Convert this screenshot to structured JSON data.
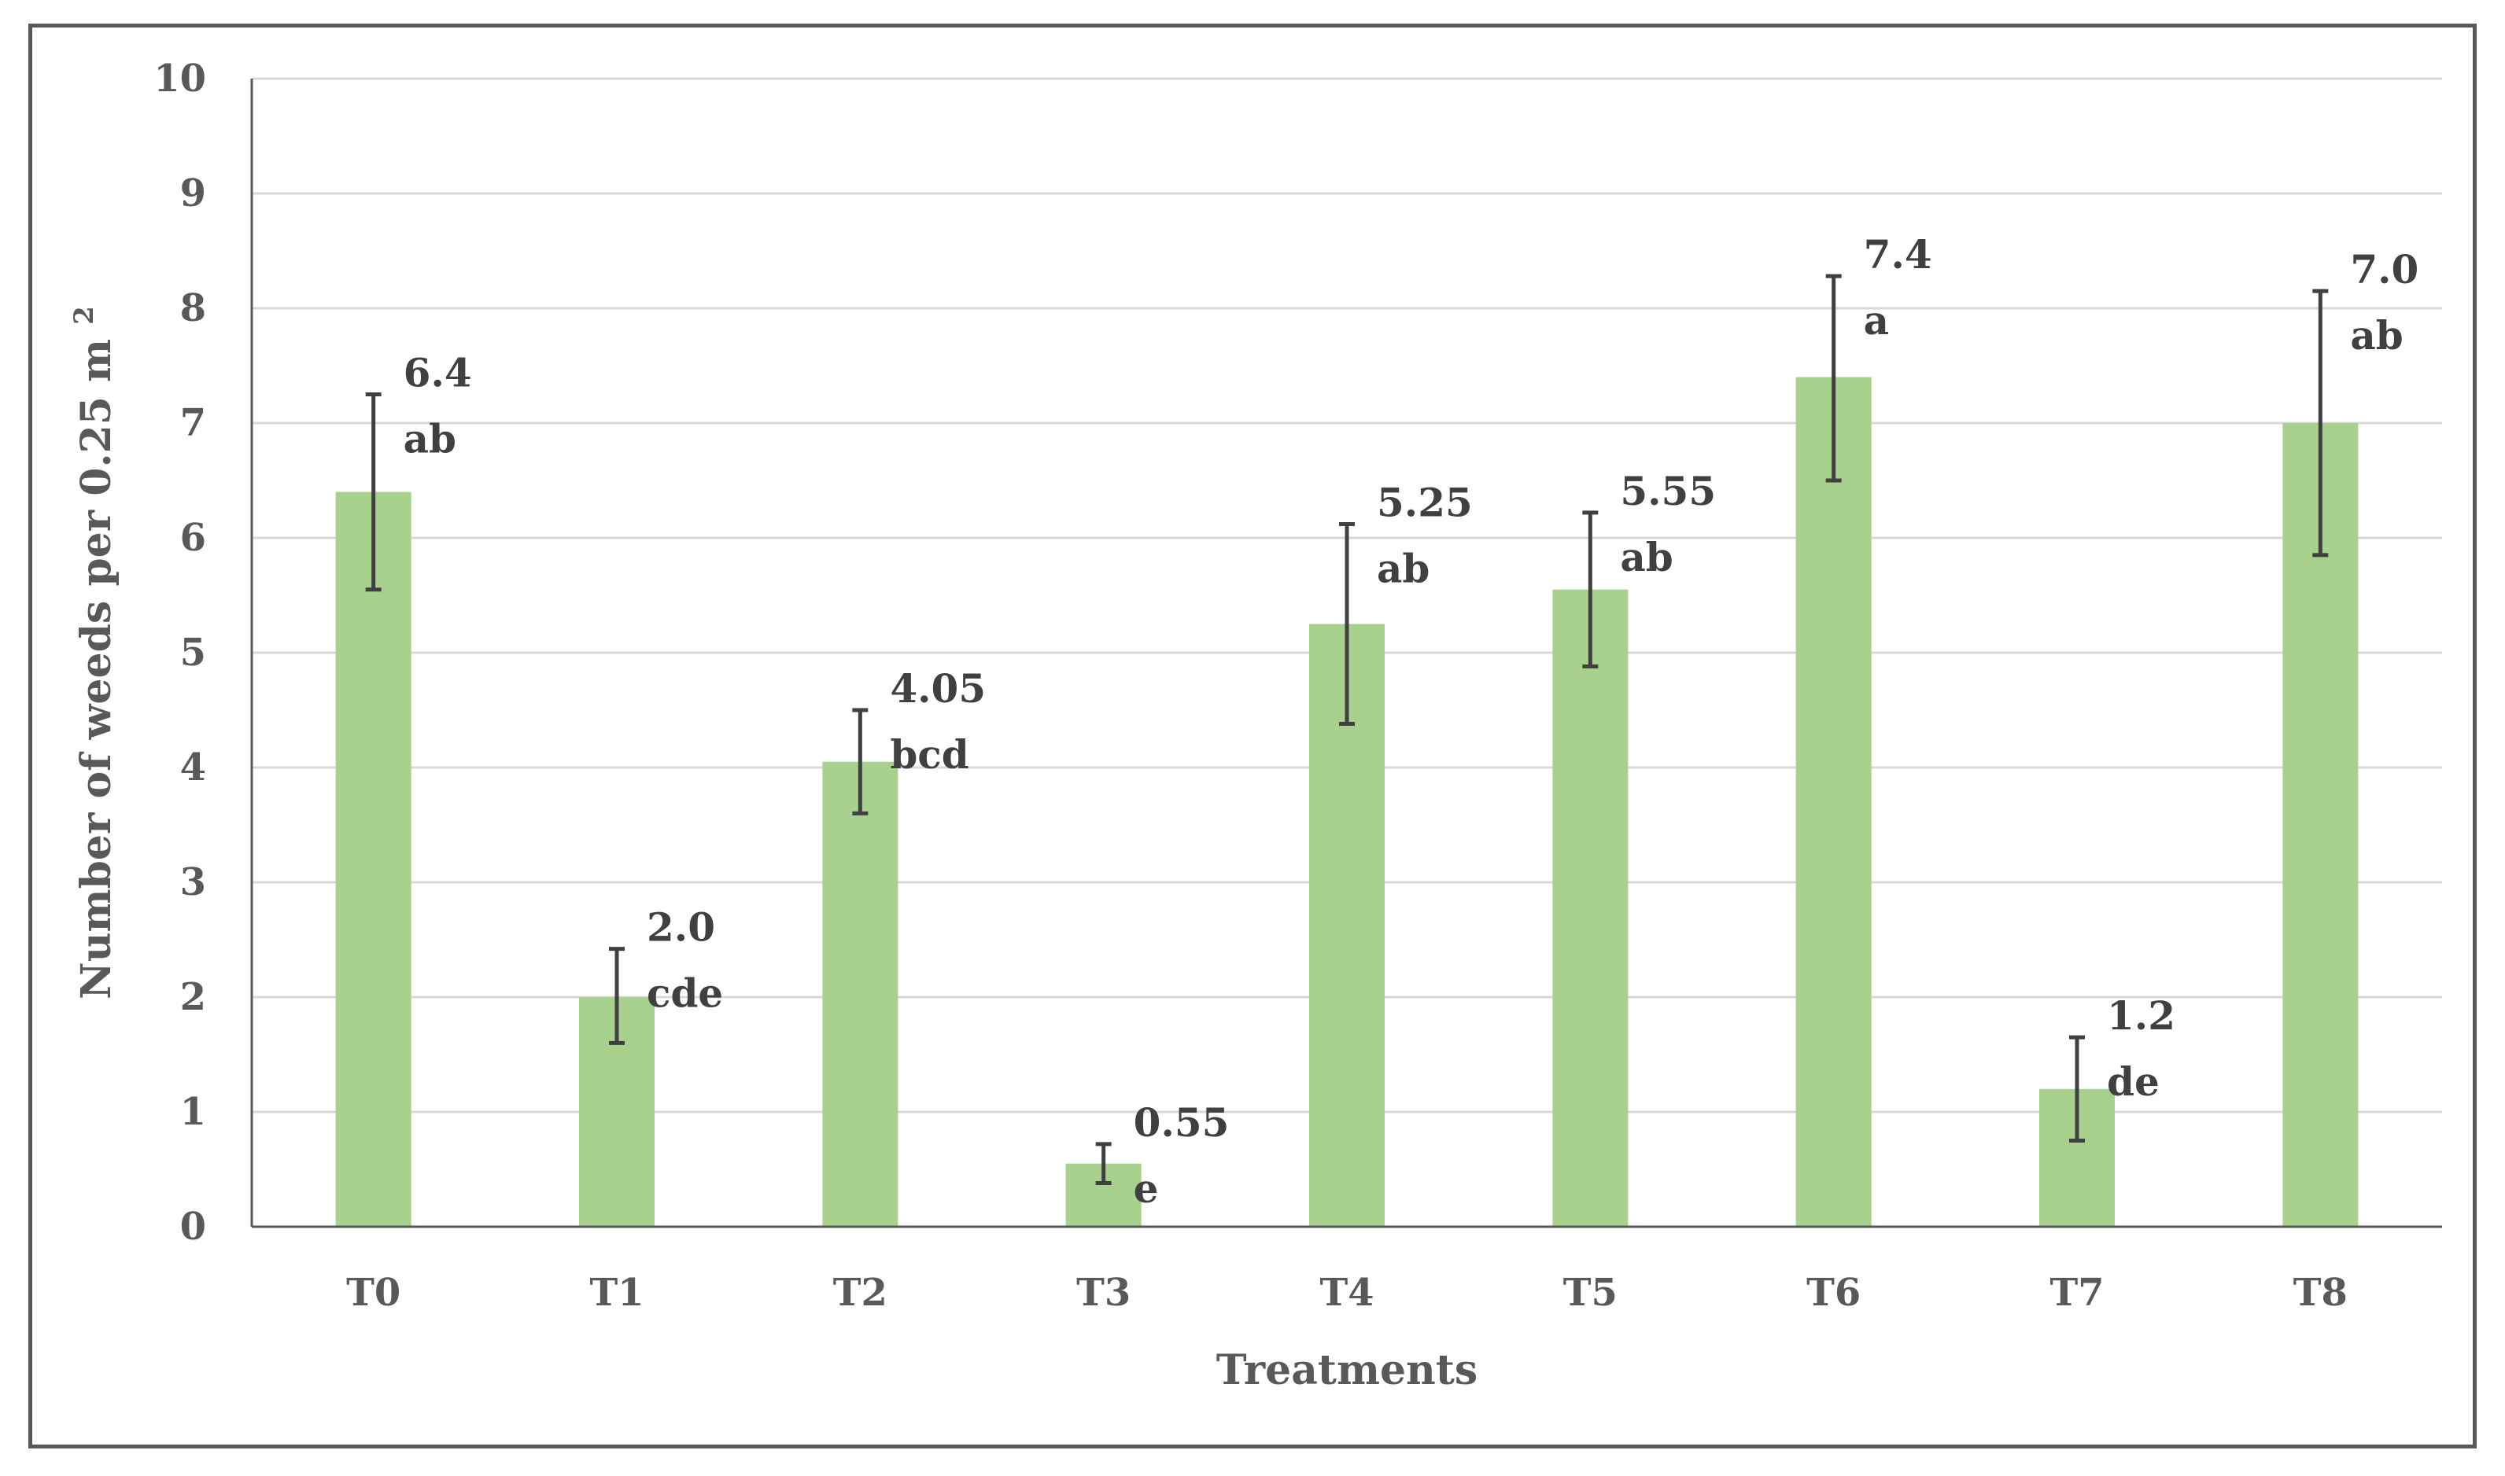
{
  "chart_data": {
    "type": "bar",
    "title": "",
    "xlabel": "Treatments",
    "ylabel": "Number of weeds per 0.25 m",
    "ylabel_superscript": "2",
    "ylim": [
      0,
      10
    ],
    "yticks": [
      "0",
      "1",
      "2",
      "3",
      "4",
      "5",
      "6",
      "7",
      "8",
      "9",
      "10"
    ],
    "grid": true,
    "bar_color": "#a9d18e",
    "categories": [
      "T0",
      "T1",
      "T2",
      "T3",
      "T4",
      "T5",
      "T6",
      "T7",
      "T8"
    ],
    "values": [
      6.4,
      2.0,
      4.05,
      0.55,
      5.25,
      5.55,
      7.4,
      1.2,
      7.0
    ],
    "error_low": [
      5.55,
      1.6,
      3.6,
      0.38,
      4.38,
      4.88,
      6.5,
      0.75,
      5.85
    ],
    "error_high": [
      7.25,
      2.42,
      4.5,
      0.72,
      6.12,
      6.22,
      8.28,
      1.65,
      8.15
    ],
    "value_labels": [
      "6.4",
      "2.0",
      "4.05",
      "0.55",
      "5.25",
      "5.55",
      "7.4",
      "1.2",
      "7.0"
    ],
    "letter_labels": [
      "ab",
      "cde",
      "bcd",
      "e",
      "ab",
      "ab",
      "a",
      "de",
      "ab"
    ]
  }
}
